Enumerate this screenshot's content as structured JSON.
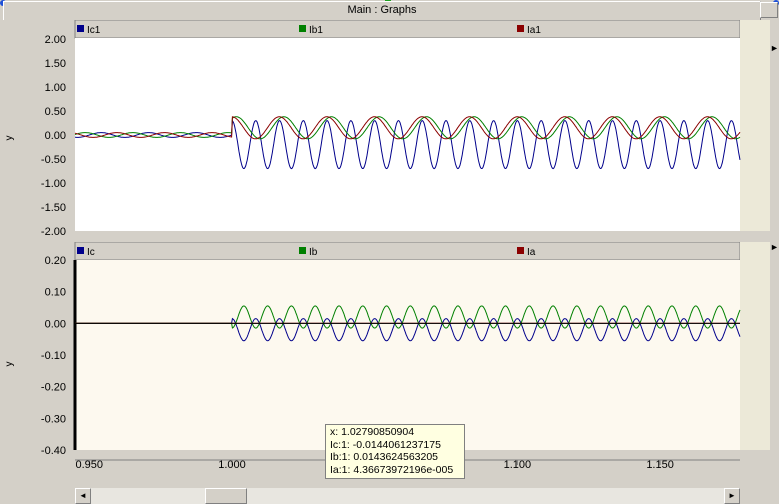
{
  "window": {
    "title": "Main : Graphs"
  },
  "top_panel": {
    "legend": [
      {
        "label": "Ic1",
        "color": "#00008b"
      },
      {
        "label": "Ib1",
        "color": "#008000"
      },
      {
        "label": "Ia1",
        "color": "#8b0000"
      }
    ],
    "ylabel": "y",
    "yticks": [
      "2.00",
      "1.50",
      "1.00",
      "0.50",
      "0.00",
      "-0.50",
      "-1.00",
      "-1.50",
      "-2.00"
    ]
  },
  "bottom_panel": {
    "legend": [
      {
        "label": "Ic",
        "color": "#00008b"
      },
      {
        "label": "Ib",
        "color": "#008000"
      },
      {
        "label": "Ia",
        "color": "#8b0000"
      }
    ],
    "ylabel": "y",
    "yticks": [
      "0.20",
      "0.10",
      "0.00",
      "-0.10",
      "-0.20",
      "-0.30",
      "-0.40"
    ]
  },
  "xticks": [
    "0.950",
    "1.000",
    "1.050",
    "1.100",
    "1.150"
  ],
  "tooltip": {
    "x": "x: 1.02790850904",
    "ic": "Ic:1: -0.0144061237175",
    "ib": "Ib:1: 0.0143624563205",
    "ia": "Ia:1: 4.36673972196e-005"
  },
  "scrollbar": {
    "left_arrow": "◄",
    "right_arrow": "►"
  },
  "chart_data": [
    {
      "type": "line",
      "title": "",
      "ylabel": "y",
      "xlim": [
        0.945,
        1.178
      ],
      "ylim": [
        -2.0,
        2.0
      ],
      "grid": false,
      "legend_position": "top",
      "series": [
        {
          "name": "Ic1",
          "color": "#00008b",
          "pre": {
            "x_end": 1.0,
            "amplitude": 0.05,
            "freq_hz": 60,
            "phase": 0
          },
          "post": {
            "kind": "tall-negative",
            "offset": -0.2,
            "amplitude": 0.5,
            "freq_hz": 120,
            "phase": 0
          }
        },
        {
          "name": "Ib1",
          "color": "#008000",
          "pre": {
            "x_end": 1.0,
            "amplitude": 0.05,
            "freq_hz": 60,
            "phase": 2.1
          },
          "post": {
            "kind": "wave",
            "offset": 0.15,
            "amplitude": 0.23,
            "freq_hz": 60,
            "phase": 1.0
          }
        },
        {
          "name": "Ia1",
          "color": "#8b0000",
          "pre": {
            "x_end": 1.0,
            "amplitude": 0.05,
            "freq_hz": 60,
            "phase": 4.2
          },
          "post": {
            "kind": "wave",
            "offset": 0.15,
            "amplitude": 0.23,
            "freq_hz": 60,
            "phase": 1.6
          }
        }
      ]
    },
    {
      "type": "line",
      "title": "",
      "ylabel": "y",
      "xlim": [
        0.945,
        1.178
      ],
      "ylim": [
        -0.4,
        0.2
      ],
      "grid": false,
      "legend_position": "top",
      "series": [
        {
          "name": "Ic",
          "color": "#00008b",
          "pre": {
            "x_end": 1.0,
            "amplitude": 0.0
          },
          "post": {
            "kind": "sym",
            "offset": -0.02,
            "amplitude": 0.035,
            "freq_hz": 120,
            "phase": 0
          }
        },
        {
          "name": "Ib",
          "color": "#008000",
          "pre": {
            "x_end": 1.0,
            "amplitude": 0.0
          },
          "post": {
            "kind": "sym",
            "offset": 0.02,
            "amplitude": 0.035,
            "freq_hz": 120,
            "phase": 3.14159
          }
        },
        {
          "name": "Ia",
          "color": "#8b0000",
          "pre": {
            "x_end": 1.0,
            "amplitude": 0.0
          },
          "post": {
            "kind": "flat",
            "offset": 0.0,
            "amplitude": 0.0,
            "freq_hz": 60,
            "phase": 0
          }
        }
      ]
    }
  ]
}
